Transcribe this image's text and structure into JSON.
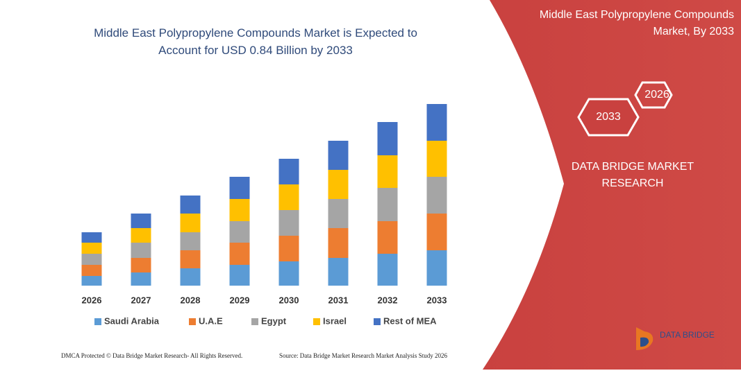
{
  "chart_data": {
    "type": "bar",
    "stacked": true,
    "title": "Middle East Polypropylene Compounds Market is Expected to Account for USD 0.84 Billion by 2033",
    "categories": [
      "2026",
      "2027",
      "2028",
      "2029",
      "2030",
      "2031",
      "2032",
      "2033"
    ],
    "series": [
      {
        "name": "Saudi Arabia",
        "color": "#5b9bd5",
        "values": [
          14,
          19,
          25,
          30,
          35,
          40,
          46,
          51
        ]
      },
      {
        "name": "U.A.E",
        "color": "#ed7d31",
        "values": [
          16,
          21,
          26,
          32,
          37,
          43,
          47,
          53
        ]
      },
      {
        "name": "Egypt",
        "color": "#a5a5a5",
        "values": [
          16,
          22,
          26,
          31,
          37,
          42,
          48,
          53
        ]
      },
      {
        "name": "Israel",
        "color": "#ffc000",
        "values": [
          16,
          21,
          27,
          32,
          37,
          42,
          47,
          52
        ]
      },
      {
        "name": "Rest of MEA",
        "color": "#4472c4",
        "values": [
          15,
          21,
          26,
          32,
          37,
          42,
          48,
          53
        ]
      }
    ]
  },
  "panel": {
    "title": "Middle East Polypropylene Compounds Market, By 2033",
    "hex_back": "2026",
    "hex_front": "2033",
    "brand": "DATA BRIDGE MARKET RESEARCH"
  },
  "logo": "DATA BRIDGE",
  "footer": {
    "left": "DMCA Protected © Data Bridge Market Research- All Rights Reserved.",
    "right": "Source: Data Bridge Market Research  Market Analysis Study 2026"
  }
}
